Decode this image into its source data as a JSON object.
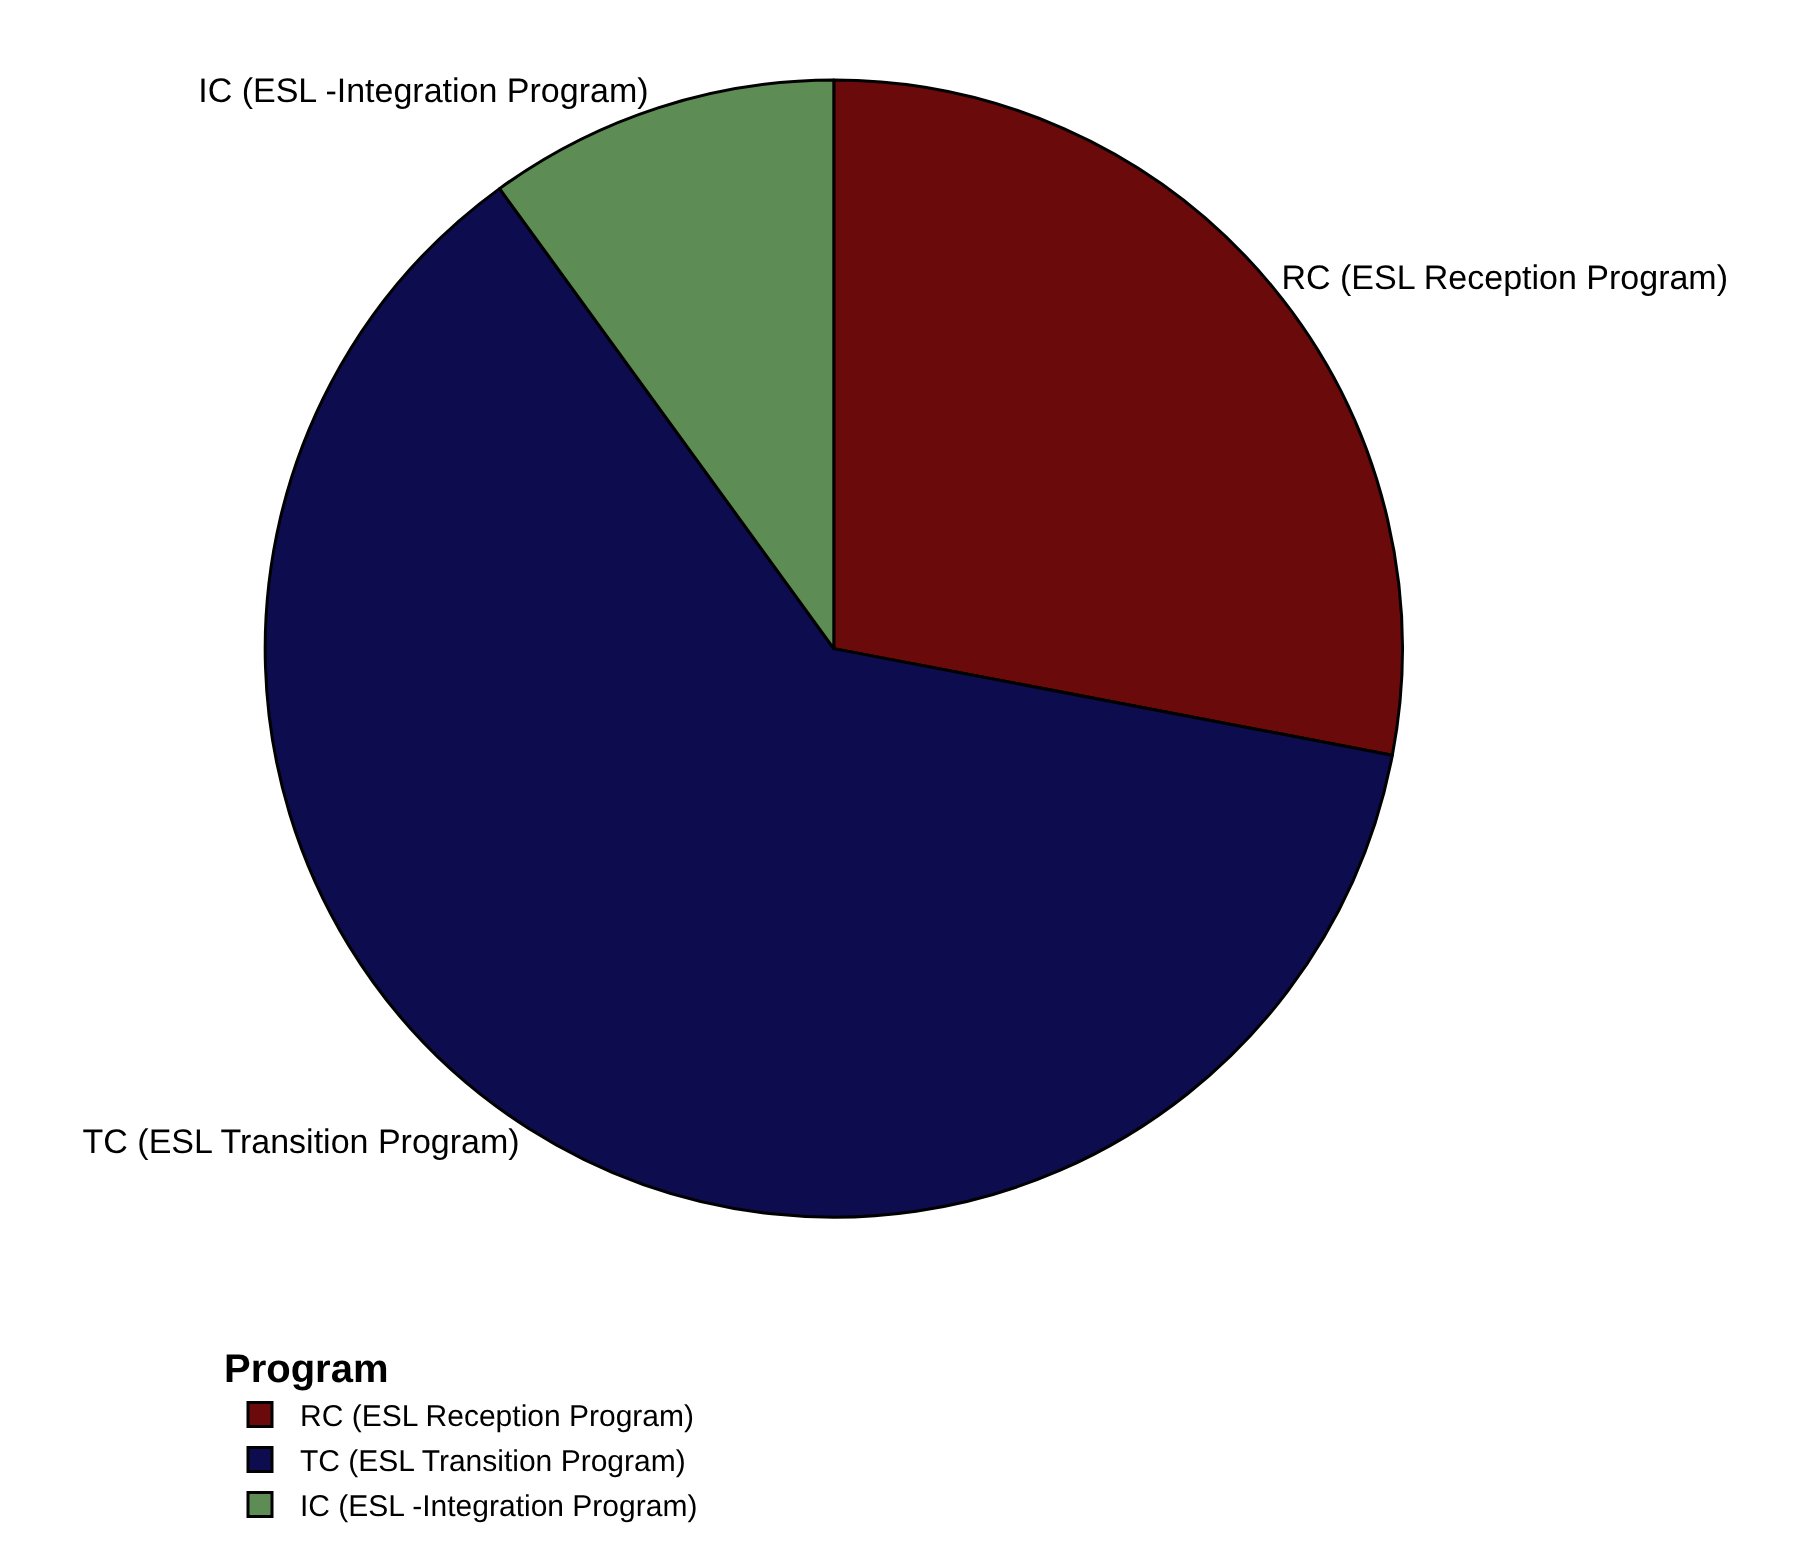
{
  "chart_data": {
    "type": "pie",
    "categories": [
      "RC (ESL Reception Program)",
      "TC (ESL Transition Program)",
      "IC (ESL -Integration Program)"
    ],
    "values": [
      28,
      62,
      10
    ],
    "colors": [
      "#6b0a0a",
      "#0c0c4e",
      "#5e8c55"
    ],
    "legend_title": "Program",
    "legend": "bottom left"
  }
}
